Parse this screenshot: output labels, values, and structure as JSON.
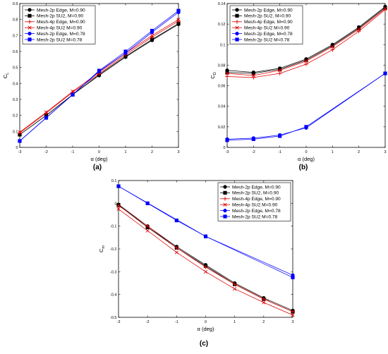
{
  "chart_data": [
    {
      "type": "line",
      "panel_label": "(a)",
      "xlabel": "α (deg)",
      "ylabel": "CL",
      "ylabel_main": "C",
      "ylabel_sub": "L",
      "xlim": [
        -3,
        3
      ],
      "ylim": [
        0,
        0.9
      ],
      "xticks": [
        -3,
        -2,
        -1,
        0,
        1,
        2,
        3
      ],
      "yticks": [
        0,
        0.1,
        0.2,
        0.3,
        0.4,
        0.5,
        0.6,
        0.7,
        0.8,
        0.9
      ],
      "ytick_labels": [
        "0",
        "0.1",
        "0.2",
        "0.3",
        "0.4",
        "0.5",
        "0.6",
        "0.7",
        "0.8",
        "0.9"
      ],
      "legend_position": "top-left",
      "x": [
        -3,
        -2,
        -1,
        0,
        1,
        2,
        3
      ],
      "series": [
        {
          "name": "Mesh-2p Edge, M=0.90",
          "color": "#000000",
          "marker": "circle",
          "values": [
            0.08,
            0.2,
            0.33,
            0.45,
            0.565,
            0.67,
            0.77
          ]
        },
        {
          "name": "Mesh-2p SU2, M=0.90",
          "color": "#000000",
          "marker": "square",
          "values": [
            0.08,
            0.2,
            0.33,
            0.455,
            0.57,
            0.675,
            0.775
          ]
        },
        {
          "name": "Mesh-4p Edge, M=0.90",
          "color": "#e00000",
          "marker": "plus",
          "values": [
            0.09,
            0.215,
            0.345,
            0.46,
            0.58,
            0.69,
            0.79
          ]
        },
        {
          "name": "Mesh-4p SU2 M=0.90",
          "color": "#e00000",
          "marker": "x",
          "values": [
            0.095,
            0.22,
            0.35,
            0.47,
            0.59,
            0.7,
            0.8
          ]
        },
        {
          "name": "Mesh-2p Edge, M=0.78",
          "color": "#0000ff",
          "marker": "circle",
          "values": [
            0.04,
            0.185,
            0.33,
            0.475,
            0.59,
            0.72,
            0.845
          ]
        },
        {
          "name": "Mesh-2p SU2 M=0.78",
          "color": "#0000ff",
          "marker": "square",
          "values": [
            0.04,
            0.185,
            0.33,
            0.48,
            0.6,
            0.73,
            0.855
          ]
        }
      ]
    },
    {
      "type": "line",
      "panel_label": "(b)",
      "xlabel": "α (deg)",
      "ylabel": "CD",
      "ylabel_main": "C",
      "ylabel_sub": "D",
      "xlim": [
        -3,
        3
      ],
      "ylim": [
        0,
        0.14
      ],
      "xticks": [
        -3,
        -2,
        -1,
        0,
        1,
        2,
        3
      ],
      "yticks": [
        0,
        0.02,
        0.04,
        0.06,
        0.08,
        0.1,
        0.12,
        0.14
      ],
      "ytick_labels": [
        "0",
        "0.02",
        "0.04",
        "0.06",
        "0.08",
        "0.1",
        "0.12",
        "0.14"
      ],
      "legend_position": "top-left",
      "x": [
        -3,
        -2,
        -1,
        0,
        1,
        2,
        3
      ],
      "series": [
        {
          "name": "Mesh-2p Edge, M=0.90",
          "color": "#000000",
          "marker": "circle",
          "values": [
            0.075,
            0.073,
            0.077,
            0.086,
            0.1,
            0.117,
            0.137
          ]
        },
        {
          "name": "Mesh-2p SU2, M=0.90",
          "color": "#000000",
          "marker": "square",
          "values": [
            0.073,
            0.072,
            0.076,
            0.085,
            0.099,
            0.116,
            0.136
          ]
        },
        {
          "name": "Mesh-4p Edge, M=0.90",
          "color": "#e00000",
          "marker": "plus",
          "values": [
            0.069,
            0.068,
            0.072,
            0.081,
            0.095,
            0.113,
            0.134
          ]
        },
        {
          "name": "Mesh-4p SU2 M=0.90",
          "color": "#e00000",
          "marker": "x",
          "values": [
            0.072,
            0.07,
            0.075,
            0.084,
            0.098,
            0.115,
            0.135
          ]
        },
        {
          "name": "Mesh-2p Edge, M=0.78",
          "color": "#0000ff",
          "marker": "circle",
          "values": [
            0.008,
            0.009,
            0.012,
            0.019,
            null,
            null,
            0.072
          ]
        },
        {
          "name": "Mesh-2p SU2 M=0.78",
          "color": "#0000ff",
          "marker": "square",
          "values": [
            0.007,
            0.008,
            0.011,
            0.02,
            null,
            null,
            0.072
          ]
        }
      ]
    },
    {
      "type": "line",
      "panel_label": "(c)",
      "xlabel": "α (deg)",
      "ylabel": "Cm",
      "ylabel_main": "C",
      "ylabel_sub": "m",
      "xlim": [
        -3,
        3
      ],
      "ylim": [
        -0.5,
        0.1
      ],
      "xticks": [
        -3,
        -2,
        -1,
        0,
        1,
        2,
        3
      ],
      "yticks": [
        -0.5,
        -0.4,
        -0.3,
        -0.2,
        -0.1,
        0,
        0.1
      ],
      "ytick_labels": [
        "-0.5",
        "-0.4",
        "-0.3",
        "-0.2",
        "-0.1",
        "0",
        "0.1"
      ],
      "legend_position": "top-right",
      "x": [
        -3,
        -2,
        -1,
        0,
        1,
        2,
        3
      ],
      "series": [
        {
          "name": "Mesh-2p Edge, M=0.90",
          "color": "#000000",
          "marker": "circle",
          "values": [
            -0.005,
            -0.1,
            -0.19,
            -0.27,
            -0.35,
            -0.415,
            -0.47
          ]
        },
        {
          "name": "Mesh-2p SU2, M=0.90",
          "color": "#000000",
          "marker": "square",
          "values": [
            -0.008,
            -0.105,
            -0.195,
            -0.275,
            -0.355,
            -0.42,
            -0.475
          ]
        },
        {
          "name": "Mesh-4p Edge, M=0.90",
          "color": "#e00000",
          "marker": "plus",
          "values": [
            -0.01,
            -0.1,
            -0.195,
            -0.28,
            -0.355,
            -0.42,
            -0.475
          ]
        },
        {
          "name": "Mesh-4p SU2 M=0.90",
          "color": "#e00000",
          "marker": "x",
          "values": [
            -0.025,
            -0.12,
            -0.215,
            -0.3,
            -0.375,
            -0.435,
            -0.49
          ]
        },
        {
          "name": "Mesh-2p Edge, M=0.78",
          "color": "#0000ff",
          "marker": "circle",
          "values": [
            0.075,
            null,
            null,
            -0.145,
            null,
            null,
            -0.315
          ]
        },
        {
          "name": "Mesh-2p SU2 M=0.78",
          "color": "#0000ff",
          "marker": "square",
          "values": [
            0.075,
            0.0,
            -0.075,
            -0.145,
            null,
            null,
            -0.325
          ]
        }
      ]
    }
  ]
}
